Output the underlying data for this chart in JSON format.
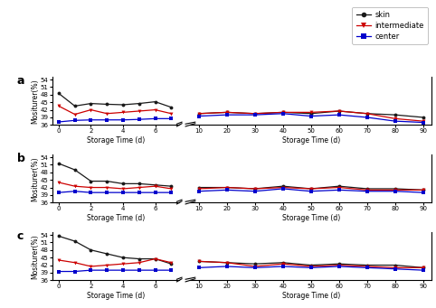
{
  "panels": [
    "a",
    "b",
    "c"
  ],
  "x_early": [
    0,
    1,
    2,
    3,
    4,
    5,
    6,
    7
  ],
  "x_late": [
    10,
    20,
    30,
    40,
    50,
    60,
    70,
    80,
    90
  ],
  "panel_a": {
    "skin_early": [
      48.5,
      43.5,
      44.5,
      44.2,
      44.0,
      44.5,
      45.2,
      43.0
    ],
    "inter_early": [
      43.5,
      40.2,
      42.0,
      40.5,
      41.0,
      41.5,
      42.0,
      40.5
    ],
    "center_early": [
      37.2,
      37.8,
      38.0,
      38.0,
      38.0,
      38.2,
      38.5,
      38.5
    ],
    "skin_late": [
      40.5,
      41.0,
      40.5,
      41.0,
      40.5,
      41.5,
      40.5,
      40.0,
      39.0
    ],
    "inter_late": [
      40.5,
      41.0,
      40.5,
      41.0,
      41.0,
      41.5,
      40.5,
      38.5,
      37.5
    ],
    "center_late": [
      39.5,
      40.0,
      40.0,
      40.5,
      39.5,
      40.0,
      39.0,
      37.5,
      37.0
    ]
  },
  "panel_b": {
    "skin_early": [
      51.5,
      49.0,
      44.5,
      44.5,
      43.5,
      43.5,
      43.0,
      42.5
    ],
    "inter_early": [
      44.0,
      42.5,
      42.0,
      42.0,
      41.5,
      42.0,
      42.5,
      41.5
    ],
    "center_early": [
      40.0,
      40.5,
      40.0,
      40.0,
      40.0,
      40.0,
      40.0,
      40.0
    ],
    "skin_late": [
      42.0,
      42.0,
      41.5,
      42.5,
      41.5,
      42.5,
      41.5,
      41.5,
      41.0
    ],
    "inter_late": [
      41.5,
      42.0,
      41.5,
      42.0,
      41.5,
      42.0,
      41.0,
      41.0,
      41.0
    ],
    "center_late": [
      40.5,
      41.0,
      40.5,
      41.5,
      40.5,
      41.0,
      40.5,
      40.5,
      40.0
    ]
  },
  "panel_c": {
    "skin_early": [
      53.5,
      51.5,
      48.0,
      46.5,
      45.0,
      44.5,
      44.5,
      42.5
    ],
    "inter_early": [
      44.0,
      43.0,
      41.5,
      42.0,
      42.5,
      43.0,
      44.5,
      43.0
    ],
    "center_early": [
      39.5,
      39.5,
      40.0,
      40.0,
      40.0,
      40.0,
      40.0,
      40.0
    ],
    "skin_late": [
      43.5,
      43.0,
      42.5,
      43.0,
      42.0,
      42.5,
      42.0,
      42.0,
      41.0
    ],
    "inter_late": [
      43.5,
      43.0,
      41.5,
      42.5,
      41.5,
      42.0,
      41.5,
      41.0,
      41.0
    ],
    "center_late": [
      41.0,
      41.5,
      41.0,
      41.5,
      41.0,
      41.5,
      41.0,
      40.5,
      40.0
    ]
  },
  "colors": {
    "skin": "#1a1a1a",
    "intermediate": "#cc0000",
    "center": "#0000cc"
  },
  "ylabel": "Mositurer(%)",
  "xlabel": "Storage Time (d)",
  "ylim": [
    36,
    55
  ],
  "yticks": [
    36,
    39,
    42,
    45,
    48,
    51,
    54
  ],
  "legend_labels": [
    "skin",
    "intermediate",
    "center"
  ]
}
